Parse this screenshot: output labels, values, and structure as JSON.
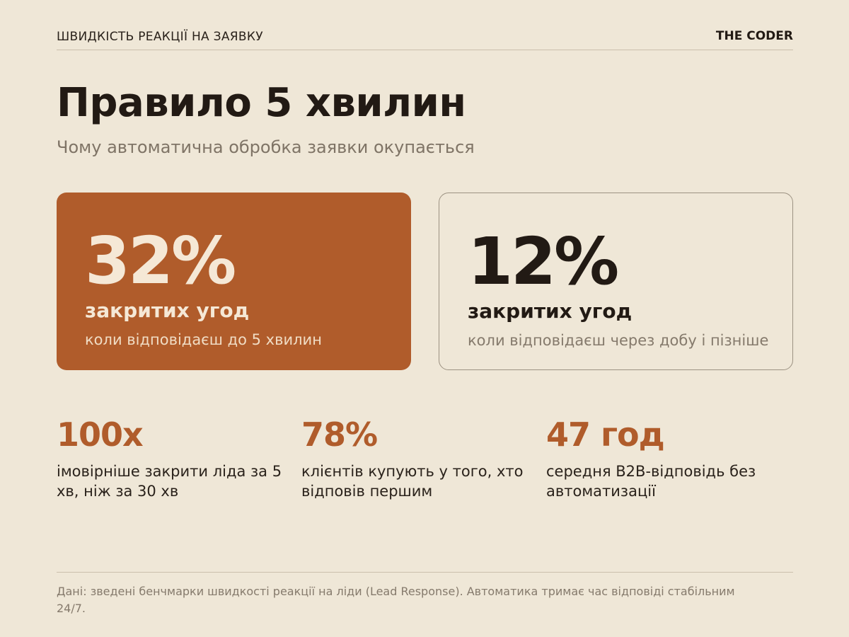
{
  "header": {
    "section_label": "ШВИДКІСТЬ РЕАКЦІЇ НА ЗАЯВКУ",
    "brand": "THE CODER"
  },
  "title": "Правило 5 хвилин",
  "subtitle": "Чому автоматична обробка заявки окупається",
  "cards": [
    {
      "value": "32%",
      "label": "закритих угод",
      "note": "коли відповідаєш до 5 хвилин"
    },
    {
      "value": "12%",
      "label": "закритих угод",
      "note": "коли відповідаєш через добу і пізніше"
    }
  ],
  "stats": [
    {
      "value": "100x",
      "description": "імовірніше закрити ліда за 5 хв, ніж за 30 хв"
    },
    {
      "value": "78%",
      "description": "клієнтів купують у того, хто відповів першим"
    },
    {
      "value": "47 год",
      "description": "середня B2B-відповідь без автоматизації"
    }
  ],
  "footnote": "Дані: зведені бенчмарки швидкості реакції на ліди (Lead Response). Автоматика тримає час відповіді стабільним 24/7.",
  "colors": {
    "background": "#efe7d7",
    "accent": "#b05c2b",
    "text": "#221a14",
    "muted": "#857a6c"
  }
}
